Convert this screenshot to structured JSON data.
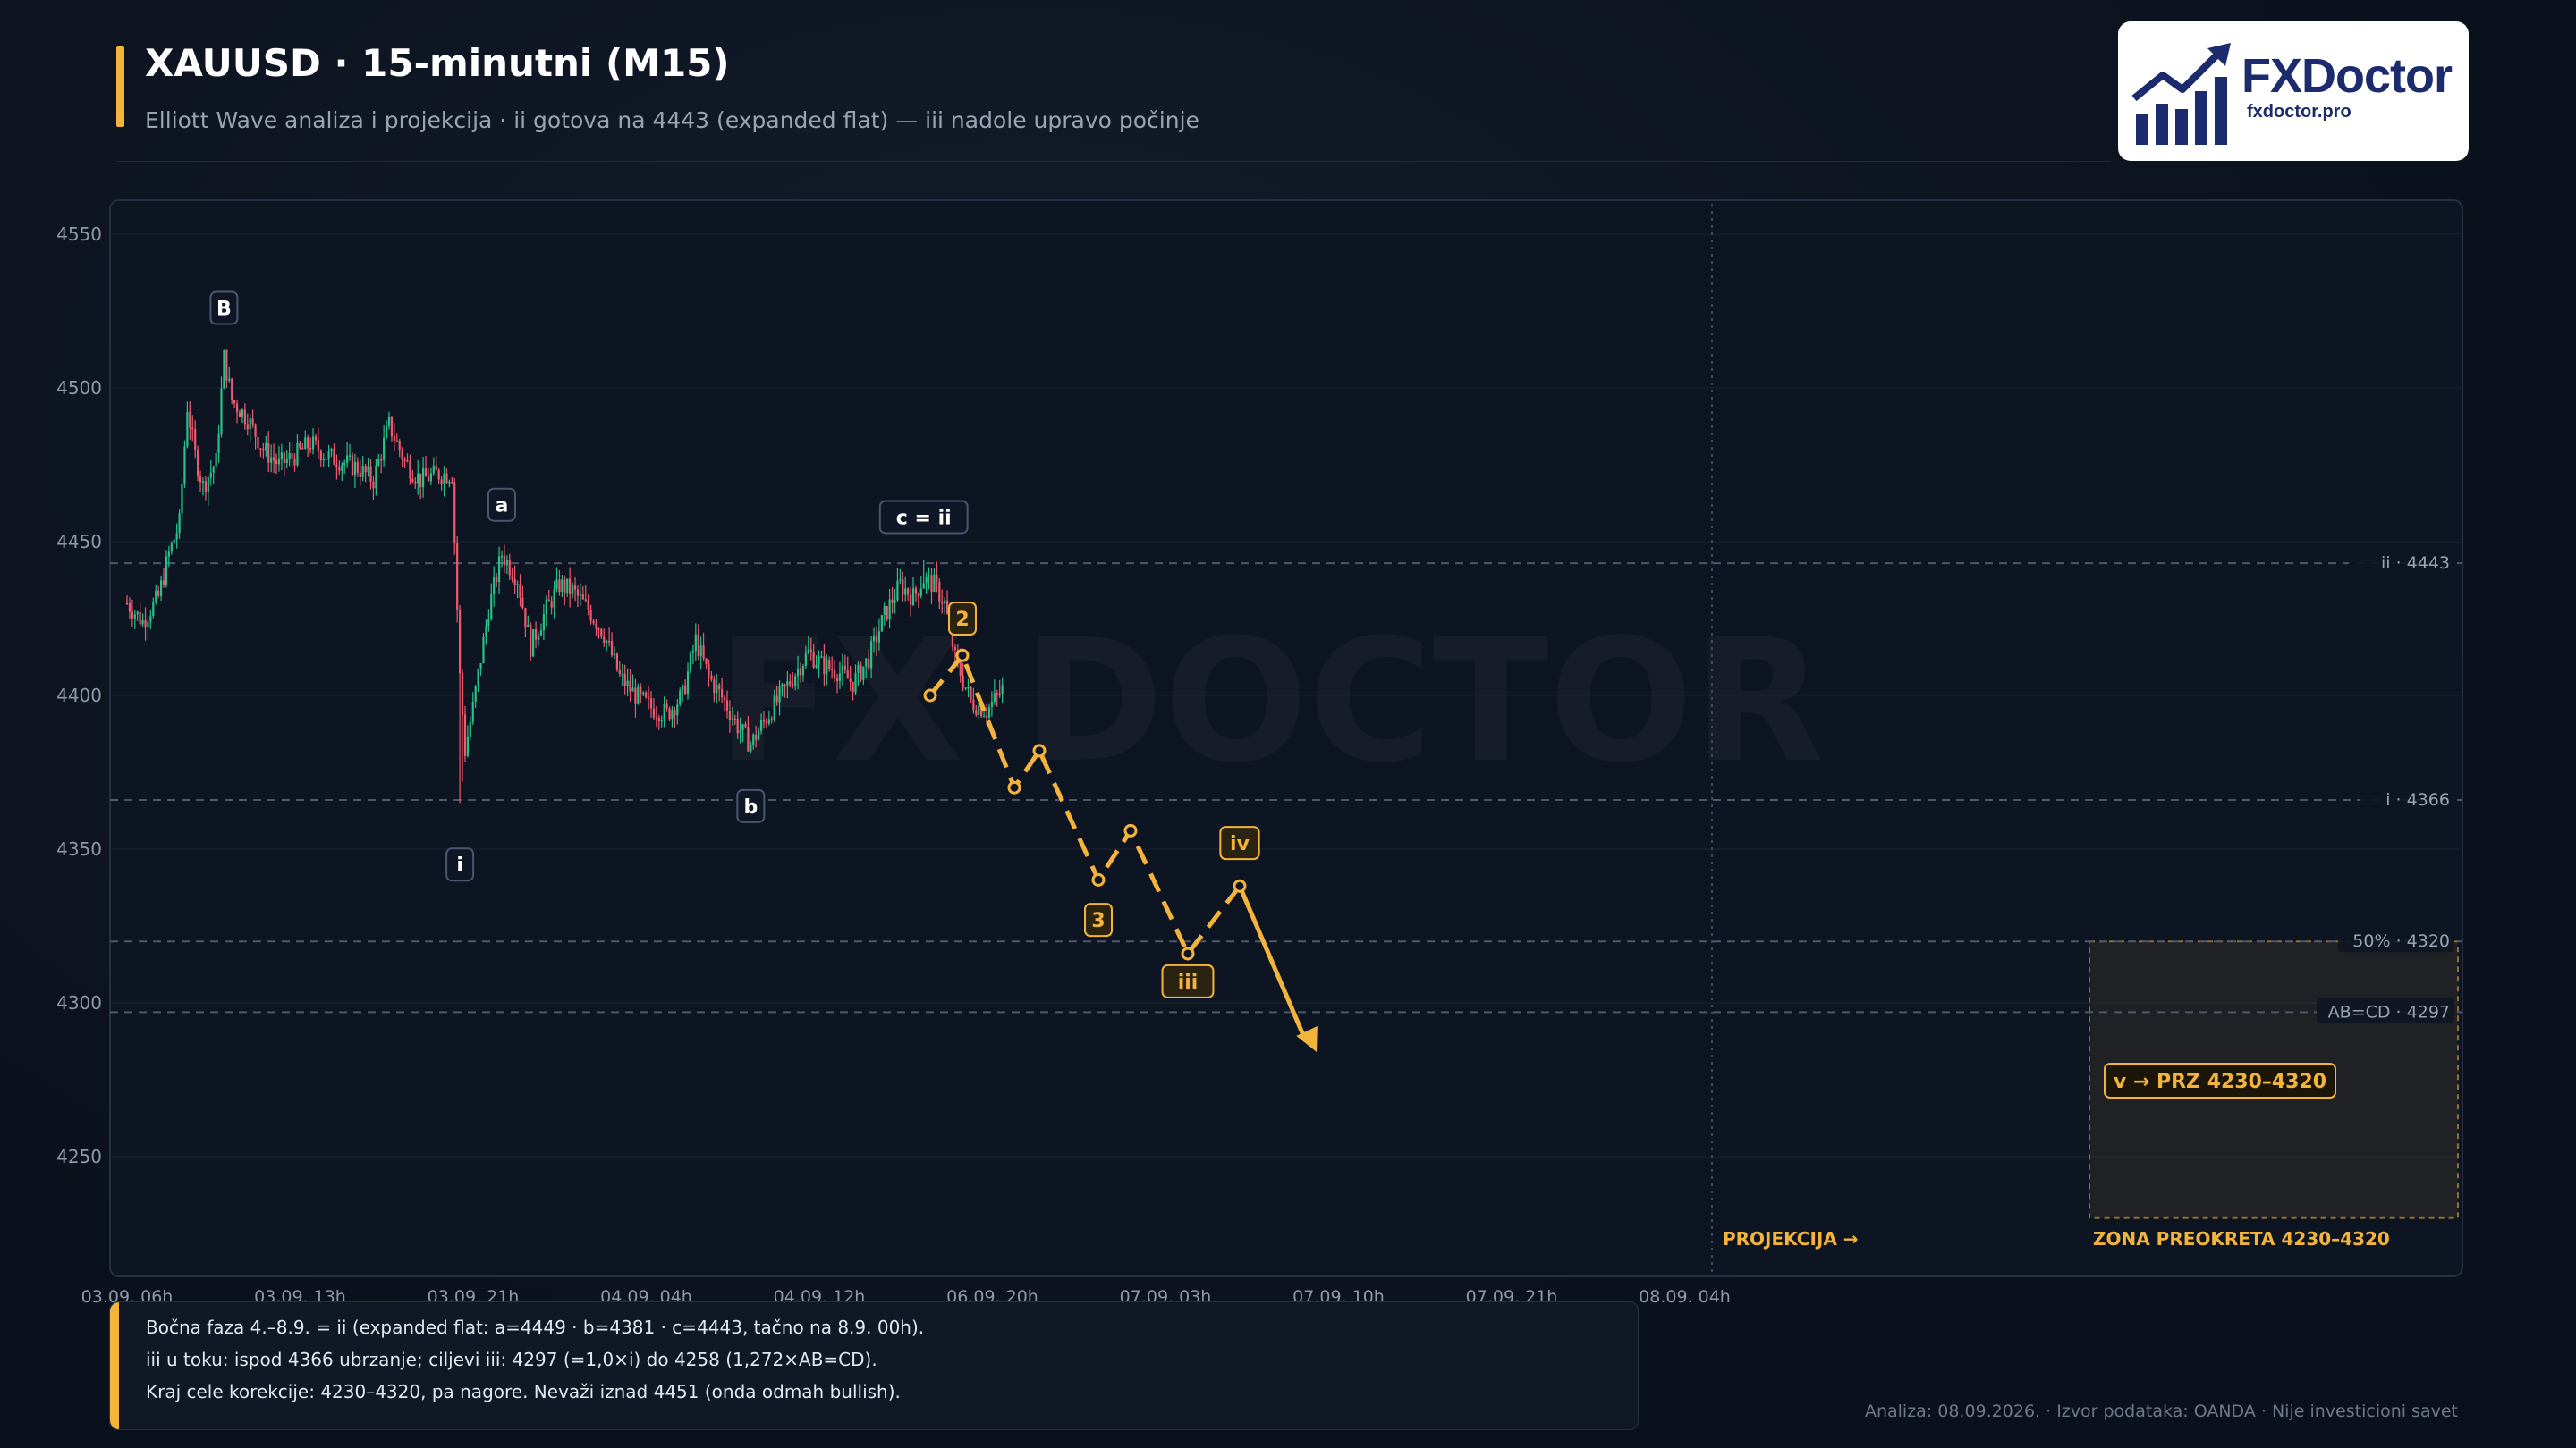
{
  "header": {
    "title": "XAUUSD · 15-minutni (M15)",
    "subtitle": "Elliott Wave analiza i projekcija  ·  ii gotova na 4443 (expanded flat) — iii nadole upravo počinje"
  },
  "logo": {
    "name": "FXDoctor",
    "url": "fxdoctor.pro",
    "watermark": "FX DOCTOR"
  },
  "colors": {
    "background": "#0b111c",
    "panel": "#0e1522",
    "bull": "#27c28a",
    "bear": "#f05a6e",
    "projection": "#f4b43c",
    "brand": "#1c2a6e"
  },
  "chart_data": {
    "type": "candlestick",
    "ylim": [
      4218,
      4558
    ],
    "yticks": [
      4550,
      4500,
      4450,
      4400,
      4350,
      4300,
      4250
    ],
    "xtick_labels": [
      "03.09. 06h",
      "03.09. 13h",
      "03.09. 21h",
      "04.09. 04h",
      "04.09. 12h",
      "06.09. 20h",
      "07.09. 03h",
      "07.09. 10h",
      "07.09. 21h",
      "08.09. 04h"
    ],
    "price_path": [
      [
        0,
        4430
      ],
      [
        6,
        4424
      ],
      [
        12,
        4432
      ],
      [
        16,
        4446
      ],
      [
        20,
        4456
      ],
      [
        23,
        4494
      ],
      [
        26,
        4478
      ],
      [
        29,
        4468
      ],
      [
        34,
        4476
      ],
      [
        37,
        4510
      ],
      [
        40,
        4496
      ],
      [
        46,
        4490
      ],
      [
        52,
        4480
      ],
      [
        58,
        4475
      ],
      [
        64,
        4478
      ],
      [
        70,
        4482
      ],
      [
        76,
        4478
      ],
      [
        82,
        4476
      ],
      [
        88,
        4474
      ],
      [
        94,
        4470
      ],
      [
        100,
        4488
      ],
      [
        106,
        4476
      ],
      [
        112,
        4470
      ],
      [
        118,
        4472
      ],
      [
        124,
        4472
      ],
      [
        127,
        4406
      ],
      [
        129,
        4382
      ],
      [
        132,
        4396
      ],
      [
        138,
        4428
      ],
      [
        143,
        4446
      ],
      [
        149,
        4438
      ],
      [
        154,
        4416
      ],
      [
        160,
        4428
      ],
      [
        165,
        4436
      ],
      [
        170,
        4434
      ],
      [
        176,
        4428
      ],
      [
        182,
        4420
      ],
      [
        188,
        4406
      ],
      [
        194,
        4400
      ],
      [
        200,
        4396
      ],
      [
        206,
        4394
      ],
      [
        212,
        4400
      ],
      [
        217,
        4418
      ],
      [
        222,
        4406
      ],
      [
        228,
        4398
      ],
      [
        233,
        4390
      ],
      [
        238,
        4384
      ],
      [
        242,
        4390
      ],
      [
        248,
        4398
      ],
      [
        254,
        4406
      ],
      [
        260,
        4414
      ],
      [
        265,
        4410
      ],
      [
        271,
        4408
      ],
      [
        277,
        4404
      ],
      [
        283,
        4412
      ],
      [
        289,
        4426
      ],
      [
        295,
        4436
      ],
      [
        300,
        4432
      ],
      [
        304,
        4438
      ],
      [
        308,
        4436
      ],
      [
        312,
        4430
      ],
      [
        316,
        4412
      ],
      [
        322,
        4398
      ],
      [
        328,
        4395
      ],
      [
        334,
        4402
      ]
    ],
    "levels": [
      {
        "value": 4443,
        "label": "ii · 4443"
      },
      {
        "value": 4366,
        "label": "i · 4366"
      },
      {
        "value": 4320,
        "label": "50% · 4320"
      },
      {
        "value": 4297,
        "label": "AB=CD · 4297"
      }
    ],
    "waves": [
      {
        "label": "B",
        "i": 37,
        "price": 4526,
        "style": "dark"
      },
      {
        "label": "a",
        "i": 143,
        "price": 4462,
        "style": "dark"
      },
      {
        "label": "i",
        "i": 127,
        "price": 4345,
        "style": "dark"
      },
      {
        "label": "b",
        "i": 238,
        "price": 4364,
        "style": "dark"
      },
      {
        "label": "c = ii",
        "i": 304,
        "price": 4458,
        "style": "dark"
      }
    ],
    "projection": {
      "points": [
        [
          4400,
          1040
        ],
        [
          4413,
          1076
        ],
        [
          4370,
          1134
        ],
        [
          4382,
          1162
        ],
        [
          4340,
          1228
        ],
        [
          4356,
          1264
        ],
        [
          4316,
          1328
        ],
        [
          4338,
          1386
        ]
      ],
      "end": {
        "price": 4284,
        "x": 1472
      },
      "labels": [
        {
          "label": "2",
          "price": 4425,
          "x": 1076
        },
        {
          "label": "3",
          "price": 4327,
          "x": 1228
        },
        {
          "label": "iii",
          "price": 4307,
          "x": 1328
        },
        {
          "label": "iv",
          "price": 4352,
          "x": 1386
        }
      ],
      "target_label": "v → PRZ 4230–4320",
      "marker_label": "PROJEKCIJA →"
    },
    "reversal_zone": {
      "low": 4230,
      "high": 4320,
      "label": "ZONA PREOKRETA 4230–4320"
    }
  },
  "info": [
    "Bočna faza 4.–8.9. = ii (expanded flat: a=4449 · b=4381 · c=4443, tačno na 8.9. 00h).",
    "iii u toku: ispod 4366 ubrzanje; ciljevi iii: 4297 (=1,0×i) do 4258 (1,272×AB=CD).",
    "Kraj cele korekcije: 4230–4320, pa nagore. Nevaži iznad 4451 (onda odmah bullish)."
  ],
  "footer": "Analiza: 08.09.2026. · Izvor podataka: OANDA · Nije investicioni savet"
}
